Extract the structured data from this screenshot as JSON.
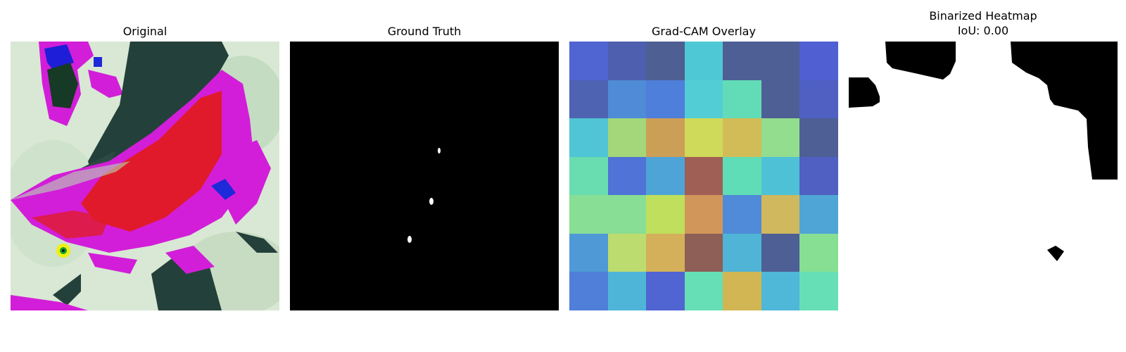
{
  "panels": [
    {
      "title": "Original"
    },
    {
      "title": "Ground Truth"
    },
    {
      "title": "Grad-CAM Overlay"
    },
    {
      "title": "Binarized Heatmap",
      "subtitle": "IoU: 0.00"
    }
  ],
  "gradcam_grid": [
    [
      "#5064d2",
      "#4e5fb0",
      "#4d5f93",
      "#4fc8d5",
      "#4e5f95",
      "#4e5f95",
      "#505fd2"
    ],
    [
      "#4e63b2",
      "#4f8bd6",
      "#4e7fda",
      "#52cdd6",
      "#62dcb6",
      "#4e5f95",
      "#4f60c2"
    ],
    [
      "#4fc5d6",
      "#a4d67a",
      "#cc9f57",
      "#cfd95a",
      "#d2bc58",
      "#92dd8e",
      "#4e5f95"
    ],
    [
      "#69dcb0",
      "#4f73d6",
      "#4ea4d6",
      "#9f5f54",
      "#5fddb6",
      "#4fc1d6",
      "#4f60c2"
    ],
    [
      "#88de94",
      "#88de94",
      "#bfdf5d",
      "#d1965a",
      "#4f8bd8",
      "#cfb85d",
      "#4fa5d6"
    ],
    [
      "#4f9ad6",
      "#bddc6f",
      "#d4b05a",
      "#8d5f57",
      "#4fb4d6",
      "#4e5f95",
      "#86df93"
    ],
    [
      "#4f7fd8",
      "#4fb5d8",
      "#5064d2",
      "#67dfb6",
      "#d1b653",
      "#4fb7d8",
      "#67dfb6"
    ]
  ],
  "colors": {
    "background": "#ffffff",
    "mask_background": "#000000",
    "mask_foreground": "#ffffff"
  }
}
